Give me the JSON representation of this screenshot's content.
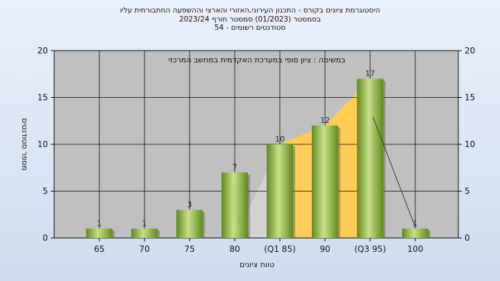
{
  "chart_data": {
    "type": "bar",
    "title_lines": [
      "היסטוגרמת ציונים בקורס - התכנון העירוני,האזורי והארצי וההשפעה החתבורתית עליו",
      "בסמסטר  (01/2023)  סמסטר חורף  2023/24",
      "סטודנטים רשומים - 54"
    ],
    "subtitle": "במשימה : ציון סופי במערכת האקדמית במחשב המרכזי",
    "xlabel": "טווח ציונים",
    "ylabel": "מספר סטודנטים",
    "categories": [
      "65",
      "70",
      "75",
      "80",
      "(Q1 85)",
      "90",
      "(Q3 95)",
      "100"
    ],
    "values": [
      1,
      1,
      3,
      7,
      10,
      12,
      17,
      1
    ],
    "ylim": [
      0,
      20
    ],
    "yticks": [
      "0",
      "5",
      "10",
      "15",
      "20"
    ],
    "grid": true,
    "interquartile_band": [
      "(Q1 85)",
      "(Q3 95)"
    ],
    "colors": {
      "plot_bg": "#c0c0c0",
      "bar_light": "#c8e08a",
      "bar_dark": "#5f8a1e",
      "band": "#ffcc55",
      "grid": "#000000"
    }
  }
}
